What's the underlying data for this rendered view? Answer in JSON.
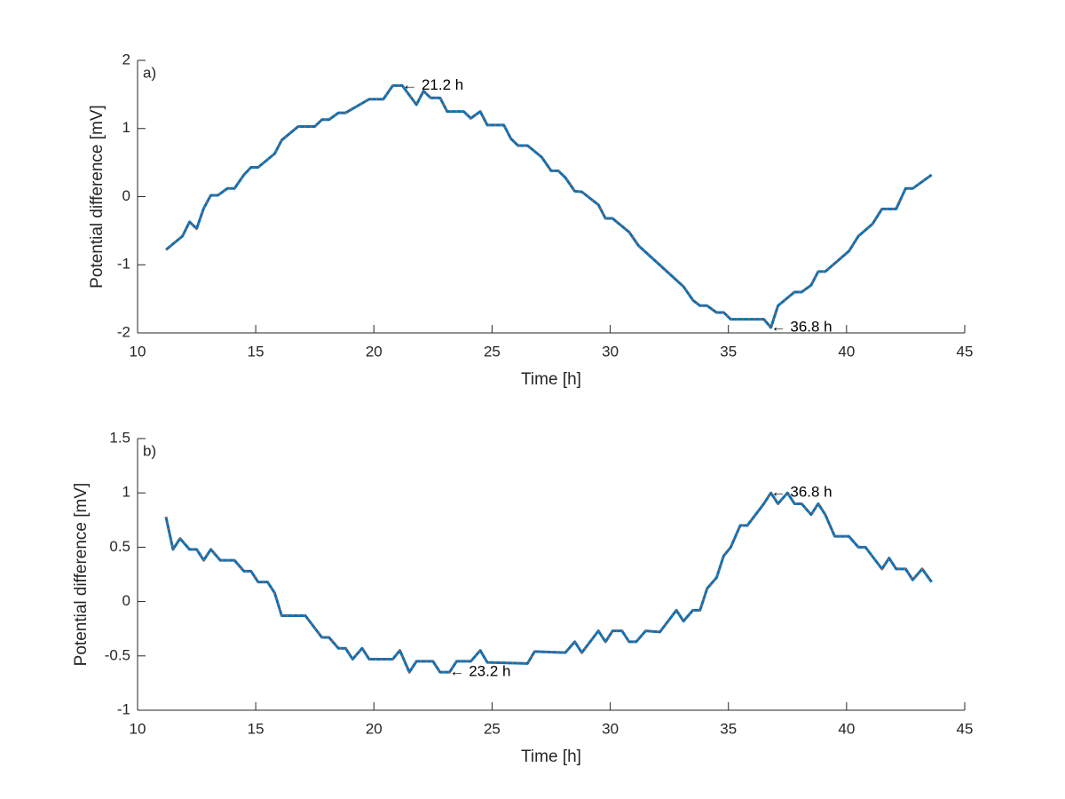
{
  "chart_data": [
    {
      "type": "line",
      "panel_label": "a)",
      "xlabel": "Time [h]",
      "ylabel": "Potential difference [mV]",
      "xlim": [
        10,
        45
      ],
      "xticks": [
        10,
        15,
        20,
        25,
        30,
        35,
        40,
        45
      ],
      "ylim": [
        -2,
        2
      ],
      "yticks": [
        -2,
        -1,
        0,
        1,
        2
      ],
      "grid": false,
      "x": [
        11.2,
        11.9,
        12.2,
        12.5,
        12.8,
        13.1,
        13.4,
        13.8,
        14.1,
        14.5,
        14.8,
        15.1,
        15.8,
        16.1,
        16.8,
        17.5,
        17.8,
        18.1,
        18.5,
        18.8,
        19.8,
        20.4,
        20.8,
        21.2,
        21.8,
        22.1,
        22.4,
        22.8,
        23.1,
        23.8,
        24.1,
        24.5,
        24.8,
        25.5,
        25.8,
        26.1,
        26.5,
        27.1,
        27.5,
        27.8,
        28.1,
        28.5,
        28.8,
        29.5,
        29.8,
        30.1,
        30.8,
        31.2,
        33.1,
        33.5,
        33.8,
        34.1,
        34.5,
        34.8,
        35.1,
        36.5,
        36.8,
        37.1,
        37.8,
        38.1,
        38.5,
        38.8,
        39.1,
        40.1,
        40.5,
        41.1,
        41.5,
        42.1,
        42.5,
        42.8,
        43.6
      ],
      "series": [
        {
          "color": "#0072bd",
          "marker_color": "#d95319",
          "values": [
            -0.78,
            -0.58,
            -0.37,
            -0.47,
            -0.17,
            0.02,
            0.02,
            0.12,
            0.12,
            0.32,
            0.43,
            0.43,
            0.63,
            0.83,
            1.03,
            1.03,
            1.13,
            1.13,
            1.23,
            1.23,
            1.43,
            1.43,
            1.63,
            1.63,
            1.35,
            1.55,
            1.45,
            1.45,
            1.25,
            1.25,
            1.15,
            1.25,
            1.05,
            1.05,
            0.85,
            0.75,
            0.75,
            0.58,
            0.38,
            0.38,
            0.28,
            0.08,
            0.07,
            -0.12,
            -0.32,
            -0.32,
            -0.52,
            -0.72,
            -1.32,
            -1.52,
            -1.6,
            -1.6,
            -1.7,
            -1.7,
            -1.8,
            -1.8,
            -1.92,
            -1.6,
            -1.4,
            -1.4,
            -1.3,
            -1.1,
            -1.1,
            -0.8,
            -0.58,
            -0.4,
            -0.18,
            -0.18,
            0.12,
            0.12,
            0.32
          ]
        }
      ],
      "annotations": [
        {
          "text": "← 21.2 h",
          "x": 21.2,
          "y": 1.63
        },
        {
          "text": "← 36.8 h",
          "x": 36.8,
          "y": -1.92
        }
      ]
    },
    {
      "type": "line",
      "panel_label": "b)",
      "xlabel": "Time [h]",
      "ylabel": "Potential difference [mV]",
      "xlim": [
        10,
        45
      ],
      "xticks": [
        10,
        15,
        20,
        25,
        30,
        35,
        40,
        45
      ],
      "ylim": [
        -1,
        1.5
      ],
      "yticks": [
        -1,
        -0.5,
        0,
        0.5,
        1,
        1.5
      ],
      "grid": false,
      "x": [
        11.2,
        11.5,
        11.8,
        12.2,
        12.5,
        12.8,
        13.1,
        13.5,
        14.1,
        14.5,
        14.8,
        15.1,
        15.5,
        15.8,
        16.1,
        17.1,
        17.8,
        18.1,
        18.5,
        18.8,
        19.1,
        19.5,
        19.8,
        20.8,
        21.1,
        21.5,
        21.8,
        22.5,
        22.8,
        23.2,
        23.5,
        24.1,
        24.5,
        24.8,
        26.5,
        26.8,
        28.1,
        28.5,
        28.8,
        29.5,
        29.8,
        30.1,
        30.5,
        30.8,
        31.1,
        31.5,
        32.1,
        32.8,
        33.1,
        33.5,
        33.8,
        34.1,
        34.5,
        34.8,
        35.1,
        35.5,
        35.8,
        36.5,
        36.8,
        37.1,
        37.5,
        37.8,
        38.1,
        38.5,
        38.8,
        39.1,
        39.5,
        40.1,
        40.5,
        40.8,
        41.5,
        41.8,
        42.1,
        42.5,
        42.8,
        43.2,
        43.6
      ],
      "series": [
        {
          "color": "#0072bd",
          "marker_color": "#d95319",
          "values": [
            0.78,
            0.48,
            0.58,
            0.48,
            0.48,
            0.38,
            0.48,
            0.38,
            0.38,
            0.28,
            0.28,
            0.18,
            0.18,
            0.08,
            -0.13,
            -0.13,
            -0.33,
            -0.33,
            -0.43,
            -0.43,
            -0.53,
            -0.43,
            -0.53,
            -0.53,
            -0.45,
            -0.65,
            -0.55,
            -0.55,
            -0.65,
            -0.65,
            -0.55,
            -0.55,
            -0.45,
            -0.56,
            -0.57,
            -0.46,
            -0.47,
            -0.37,
            -0.47,
            -0.27,
            -0.37,
            -0.27,
            -0.27,
            -0.37,
            -0.37,
            -0.27,
            -0.28,
            -0.08,
            -0.18,
            -0.08,
            -0.08,
            0.12,
            0.22,
            0.42,
            0.5,
            0.7,
            0.7,
            0.9,
            1.0,
            0.9,
            1.0,
            0.9,
            0.9,
            0.8,
            0.9,
            0.8,
            0.6,
            0.6,
            0.5,
            0.5,
            0.3,
            0.4,
            0.3,
            0.3,
            0.2,
            0.3,
            0.18
          ]
        }
      ],
      "annotations": [
        {
          "text": "← 36.8 h",
          "x": 36.8,
          "y": 1.0
        },
        {
          "text": "← 23.2 h",
          "x": 23.2,
          "y": -0.65
        }
      ]
    }
  ]
}
